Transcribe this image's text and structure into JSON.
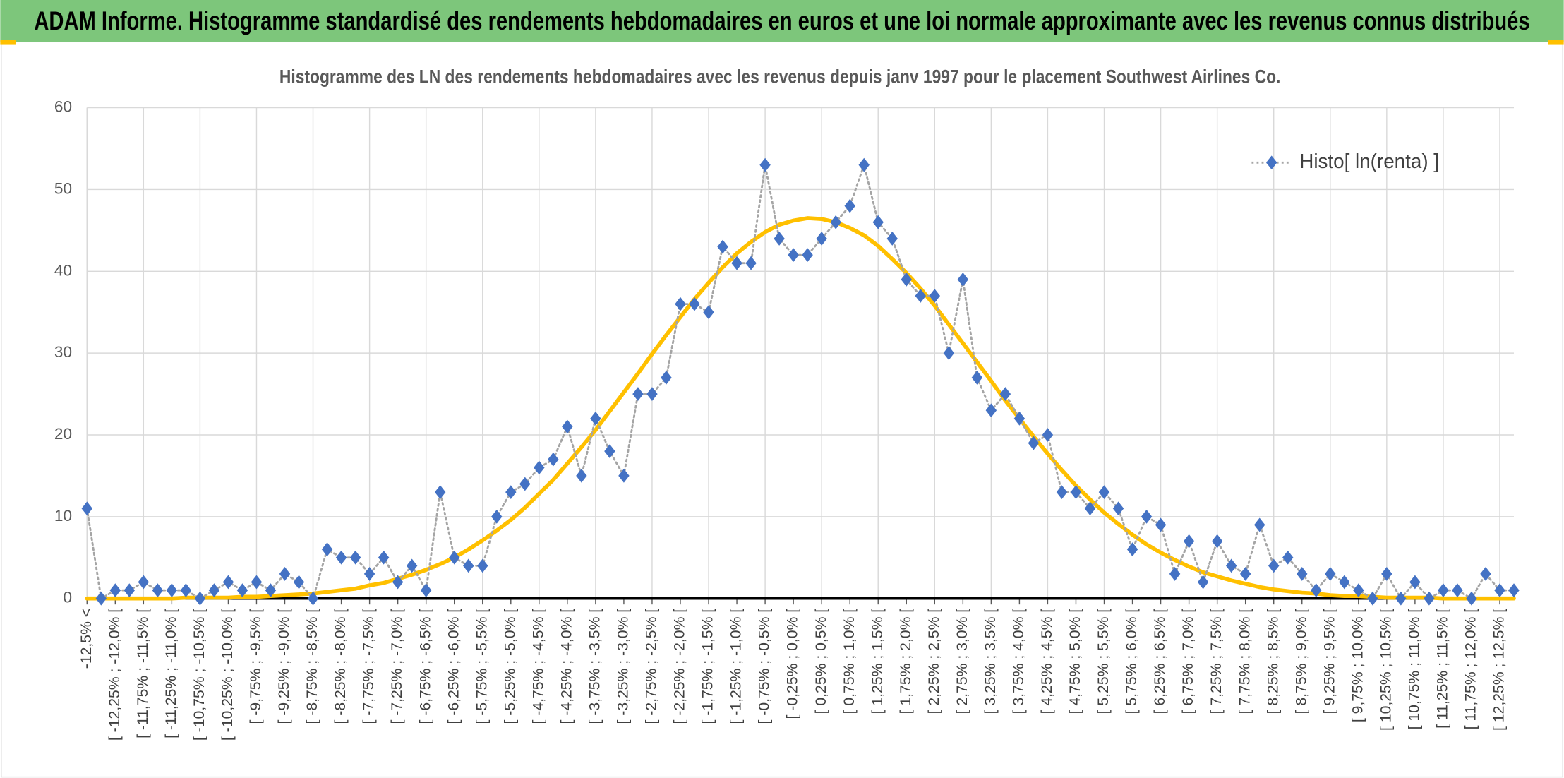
{
  "chart_data": {
    "type": "line",
    "title": "ADAM Informe. Histogramme standardisé des rendements hebdomadaires en euros et une loi normale approximante avec les revenus connus distribués",
    "subtitle": "Histogramme des LN des rendements hebdomadaires avec les revenus depuis janv 1997 pour le placement Southwest Airlines Co.",
    "categories": [
      "-12,5% <",
      null,
      "[ -12,25% ; -12,0% [",
      null,
      "[ -11,75% ; -11,5% [",
      null,
      "[ -11,25% ; -11,0% [",
      null,
      "[ -10,75% ; -10,5% [",
      null,
      "[ -10,25% ; -10,0% [",
      null,
      "[ -9,75% ; -9,5% [",
      null,
      "[ -9,25% ; -9,0% [",
      null,
      "[ -8,75% ; -8,5% [",
      null,
      "[ -8,25% ; -8,0% [",
      null,
      "[ -7,75% ; -7,5% [",
      null,
      "[ -7,25% ; -7,0% [",
      null,
      "[ -6,75% ; -6,5% [",
      null,
      "[ -6,25% ; -6,0% [",
      null,
      "[ -5,75% ; -5,5% [",
      null,
      "[ -5,25% ; -5,0% [",
      null,
      "[ -4,75% ; -4,5% [",
      null,
      "[ -4,25% ; -4,0% [",
      null,
      "[ -3,75% ; -3,5% [",
      null,
      "[ -3,25% ; -3,0% [",
      null,
      "[ -2,75% ; -2,5% [",
      null,
      "[ -2,25% ; -2,0% [",
      null,
      "[ -1,75% ; -1,5% [",
      null,
      "[ -1,25% ; -1,0% [",
      null,
      "[ -0,75% ; -0,5% [",
      null,
      "[ -0,25% ; 0,0% [",
      null,
      "[ 0,25% ; 0,5% [",
      null,
      "[ 0,75% ; 1,0% [",
      null,
      "[ 1,25% ; 1,5% [",
      null,
      "[ 1,75% ; 2,0% [",
      null,
      "[ 2,25% ; 2,5% [",
      null,
      "[ 2,75% ; 3,0% [",
      null,
      "[ 3,25% ; 3,5% [",
      null,
      "[ 3,75% ; 4,0% [",
      null,
      "[ 4,25% ; 4,5% [",
      null,
      "[ 4,75% ; 5,0% [",
      null,
      "[ 5,25% ; 5,5% [",
      null,
      "[ 5,75% ; 6,0% [",
      null,
      "[ 6,25% ; 6,5% [",
      null,
      "[ 6,75% ; 7,0% [",
      null,
      "[ 7,25% ; 7,5% [",
      null,
      "[ 7,75% ; 8,0% [",
      null,
      "[ 8,25% ; 8,5% [",
      null,
      "[ 8,75% ; 9,0% [",
      null,
      "[ 9,25% ; 9,5% [",
      null,
      "[ 9,75% ; 10,0% [",
      null,
      "[ 10,25% ; 10,5% [",
      null,
      "[ 10,75% ; 11,0% [",
      null,
      "[ 11,25% ; 11,5% [",
      null,
      "[ 11,75% ; 12,0% [",
      null,
      "[ 12,25% ; 12,5% [",
      null
    ],
    "series": [
      {
        "name": "Histo[ ln(renta) ]",
        "color": "#4472c4",
        "line_color": "#a5a5a5",
        "marker": "diamond",
        "line_style": "dotted",
        "values": [
          11,
          0,
          1,
          1,
          2,
          1,
          1,
          1,
          0,
          1,
          2,
          1,
          2,
          1,
          3,
          2,
          0,
          6,
          5,
          5,
          3,
          5,
          2,
          4,
          1,
          13,
          5,
          4,
          4,
          10,
          13,
          14,
          16,
          17,
          21,
          15,
          22,
          18,
          15,
          25,
          25,
          27,
          36,
          36,
          35,
          43,
          41,
          41,
          53,
          44,
          42,
          42,
          44,
          46,
          48,
          53,
          46,
          44,
          39,
          37,
          37,
          30,
          39,
          27,
          23,
          25,
          22,
          19,
          20,
          13,
          13,
          11,
          13,
          11,
          6,
          10,
          9,
          3,
          7,
          2,
          7,
          4,
          3,
          9,
          4,
          5,
          3,
          1,
          3,
          2,
          1,
          0,
          3,
          0,
          2,
          0,
          1,
          1,
          0,
          3,
          1,
          1
        ]
      },
      {
        "color": "#ffc000",
        "line_style": "solid",
        "values": [
          0.0,
          0.0,
          0.0,
          0.0,
          0.0,
          0.0,
          0.0,
          0.1,
          0.1,
          0.1,
          0.1,
          0.2,
          0.2,
          0.3,
          0.4,
          0.5,
          0.6,
          0.8,
          1.0,
          1.2,
          1.6,
          1.9,
          2.4,
          2.9,
          3.5,
          4.2,
          5.0,
          6.0,
          7.1,
          8.3,
          9.6,
          11.1,
          12.8,
          14.5,
          16.5,
          18.5,
          20.6,
          22.9,
          25.2,
          27.5,
          29.9,
          32.2,
          34.4,
          36.6,
          38.6,
          40.5,
          42.2,
          43.6,
          44.8,
          45.7,
          46.2,
          46.5,
          46.4,
          46.0,
          45.3,
          44.4,
          43.1,
          41.5,
          39.8,
          37.9,
          35.8,
          33.5,
          31.2,
          28.9,
          26.6,
          24.2,
          22.0,
          19.8,
          17.7,
          15.7,
          13.8,
          12.1,
          10.5,
          9.1,
          7.8,
          6.6,
          5.6,
          4.7,
          3.9,
          3.2,
          2.7,
          2.2,
          1.8,
          1.4,
          1.1,
          0.9,
          0.7,
          0.6,
          0.4,
          0.3,
          0.3,
          0.2,
          0.1,
          0.1,
          0.1,
          0.1,
          0.0,
          0.0,
          0.0,
          0.0,
          0.0,
          0.0
        ]
      }
    ],
    "ylim": [
      0,
      60
    ],
    "yticks": [
      0,
      10,
      20,
      30,
      40,
      50,
      60
    ],
    "grid": true,
    "legend": "top-right"
  }
}
